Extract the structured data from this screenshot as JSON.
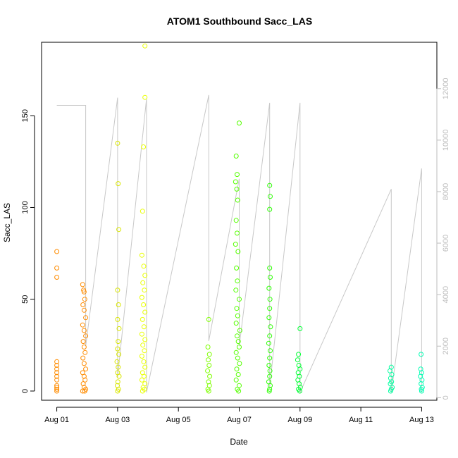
{
  "chart_data": {
    "type": "scatter",
    "title": "ATOM1 Southbound Sacc_LAS",
    "xlabel": "Date",
    "ylabel": "Sacc_LAS",
    "x_unit": "days since Aug 01 00:00",
    "xlim": [
      -0.5,
      12.5
    ],
    "ylim": [
      -5,
      190
    ],
    "y2lim": [
      -100,
      13800
    ],
    "x_ticks": [
      {
        "x": 0,
        "label": "Aug 01"
      },
      {
        "x": 2,
        "label": "Aug 03"
      },
      {
        "x": 4,
        "label": "Aug 05"
      },
      {
        "x": 6,
        "label": "Aug 07"
      },
      {
        "x": 8,
        "label": "Aug 09"
      },
      {
        "x": 10,
        "label": "Aug 11"
      },
      {
        "x": 12,
        "label": "Aug 13"
      }
    ],
    "y_ticks": [
      0,
      50,
      100,
      150
    ],
    "y2_ticks": [
      0,
      2000,
      4000,
      6000,
      8000,
      10000,
      12000
    ],
    "grid": false,
    "legend": "none",
    "series": [
      {
        "color": "#FF8C00",
        "points": [
          [
            0.0,
            76
          ],
          [
            0.0,
            67
          ],
          [
            0.0,
            62
          ],
          [
            0.0,
            16
          ],
          [
            0.0,
            14
          ],
          [
            0.0,
            12
          ],
          [
            0.0,
            10
          ],
          [
            0.0,
            8
          ],
          [
            0.0,
            6
          ],
          [
            0.0,
            3
          ],
          [
            0.0,
            2
          ],
          [
            0.0,
            1
          ],
          [
            0.0,
            0
          ],
          [
            0.85,
            58
          ],
          [
            0.88,
            55
          ],
          [
            0.9,
            54
          ],
          [
            0.92,
            50
          ],
          [
            0.86,
            47
          ],
          [
            0.9,
            44
          ],
          [
            0.95,
            40
          ],
          [
            0.85,
            36
          ],
          [
            0.9,
            33
          ],
          [
            0.95,
            30
          ],
          [
            0.87,
            27
          ],
          [
            0.9,
            24
          ],
          [
            0.93,
            21
          ],
          [
            0.86,
            18
          ],
          [
            0.9,
            15
          ],
          [
            0.95,
            12
          ],
          [
            0.85,
            10
          ],
          [
            0.9,
            8
          ],
          [
            0.93,
            6
          ],
          [
            0.87,
            4
          ],
          [
            0.9,
            2
          ],
          [
            0.95,
            1
          ],
          [
            0.85,
            0
          ],
          [
            0.92,
            0
          ]
        ]
      },
      {
        "color": "#D9E600",
        "points": [
          [
            2.0,
            135
          ],
          [
            2.02,
            113
          ],
          [
            2.04,
            88
          ],
          [
            2.0,
            55
          ],
          [
            2.03,
            47
          ],
          [
            2.0,
            39
          ],
          [
            2.05,
            34
          ],
          [
            2.02,
            27
          ],
          [
            2.0,
            23
          ],
          [
            2.04,
            20
          ],
          [
            1.98,
            16
          ],
          [
            2.02,
            13
          ],
          [
            2.0,
            10
          ],
          [
            2.05,
            8
          ],
          [
            2.01,
            5
          ],
          [
            1.99,
            3
          ],
          [
            2.03,
            1
          ],
          [
            2.0,
            0
          ]
        ]
      },
      {
        "color": "#E9FF00",
        "points": [
          [
            2.9,
            188
          ],
          [
            2.9,
            160
          ],
          [
            2.85,
            133
          ],
          [
            2.82,
            98
          ],
          [
            2.8,
            74
          ],
          [
            2.86,
            68
          ],
          [
            2.9,
            63
          ],
          [
            2.83,
            59
          ],
          [
            2.88,
            55
          ],
          [
            2.8,
            51
          ],
          [
            2.85,
            47
          ],
          [
            2.9,
            43
          ],
          [
            2.82,
            39
          ],
          [
            2.87,
            35
          ],
          [
            2.8,
            31
          ],
          [
            2.9,
            28
          ],
          [
            2.83,
            25
          ],
          [
            2.88,
            22
          ],
          [
            2.8,
            19
          ],
          [
            2.86,
            16
          ],
          [
            2.9,
            13
          ],
          [
            2.82,
            10
          ],
          [
            2.87,
            8
          ],
          [
            2.8,
            6
          ],
          [
            2.9,
            4
          ],
          [
            2.84,
            2
          ],
          [
            2.88,
            1
          ],
          [
            2.82,
            0
          ]
        ]
      },
      {
        "color": "#7FFF00",
        "points": [
          [
            5.0,
            39
          ],
          [
            4.97,
            24
          ],
          [
            5.02,
            20
          ],
          [
            4.98,
            17
          ],
          [
            5.01,
            14
          ],
          [
            4.96,
            11
          ],
          [
            5.03,
            8
          ],
          [
            4.99,
            5
          ],
          [
            5.02,
            3
          ],
          [
            4.97,
            1
          ],
          [
            5.0,
            0
          ]
        ]
      },
      {
        "color": "#55FF00",
        "points": [
          [
            6.0,
            146
          ],
          [
            5.9,
            128
          ],
          [
            5.93,
            118
          ],
          [
            5.88,
            114
          ],
          [
            5.92,
            110
          ],
          [
            5.95,
            104
          ],
          [
            5.9,
            93
          ],
          [
            5.93,
            86
          ],
          [
            5.88,
            80
          ],
          [
            5.96,
            76
          ],
          [
            5.91,
            67
          ],
          [
            5.94,
            60
          ],
          [
            5.89,
            55
          ],
          [
            6.0,
            50
          ],
          [
            5.92,
            45
          ],
          [
            5.95,
            41
          ],
          [
            5.9,
            37
          ],
          [
            6.02,
            33
          ],
          [
            5.93,
            30
          ],
          [
            5.97,
            27
          ],
          [
            6.0,
            24
          ],
          [
            5.9,
            21
          ],
          [
            5.95,
            18
          ],
          [
            6.01,
            15
          ],
          [
            5.92,
            12
          ],
          [
            5.97,
            9
          ],
          [
            5.9,
            6
          ],
          [
            6.0,
            3
          ],
          [
            5.94,
            1
          ],
          [
            5.98,
            0
          ]
        ]
      },
      {
        "color": "#2BFF00",
        "points": [
          [
            7.0,
            112
          ],
          [
            7.02,
            106
          ],
          [
            7.0,
            99
          ],
          [
            7.0,
            67
          ],
          [
            7.02,
            62
          ],
          [
            6.98,
            56
          ],
          [
            7.01,
            50
          ],
          [
            7.0,
            45
          ],
          [
            6.98,
            40
          ],
          [
            7.03,
            35
          ],
          [
            7.0,
            30
          ],
          [
            6.97,
            26
          ],
          [
            7.02,
            22
          ],
          [
            7.0,
            18
          ],
          [
            6.98,
            14
          ],
          [
            7.01,
            11
          ],
          [
            7.0,
            8
          ],
          [
            6.97,
            5
          ],
          [
            7.02,
            3
          ],
          [
            7.0,
            1
          ],
          [
            6.99,
            0
          ]
        ]
      },
      {
        "color": "#00FF33",
        "points": [
          [
            8.0,
            34
          ],
          [
            7.95,
            20
          ],
          [
            7.92,
            17
          ],
          [
            7.96,
            14
          ],
          [
            8.0,
            12
          ],
          [
            7.94,
            10
          ],
          [
            7.98,
            8
          ],
          [
            7.93,
            6
          ],
          [
            7.97,
            4
          ],
          [
            8.01,
            2
          ],
          [
            7.95,
            1
          ],
          [
            7.99,
            0
          ]
        ]
      },
      {
        "color": "#00FFA0",
        "points": [
          [
            11.0,
            13
          ],
          [
            10.96,
            11
          ],
          [
            11.02,
            9
          ],
          [
            10.98,
            7
          ],
          [
            11.01,
            5
          ],
          [
            10.97,
            4
          ],
          [
            11.03,
            2
          ],
          [
            11.0,
            1
          ],
          [
            10.98,
            0
          ]
        ]
      },
      {
        "color": "#00FFB4",
        "points": [
          [
            11.98,
            20
          ],
          [
            11.97,
            12
          ],
          [
            12.0,
            10
          ],
          [
            11.96,
            8
          ],
          [
            12.01,
            6
          ],
          [
            11.98,
            4
          ],
          [
            12.02,
            2
          ],
          [
            11.99,
            1
          ],
          [
            12.0,
            0
          ]
        ]
      }
    ],
    "secondary_series": {
      "color": "#c8c8c8",
      "points": [
        [
          0.0,
          11350
        ],
        [
          0.95,
          11350
        ],
        [
          0.95,
          2000
        ],
        [
          2.0,
          11650
        ],
        [
          2.0,
          800
        ],
        [
          2.95,
          11600
        ],
        [
          2.95,
          200
        ],
        [
          5.0,
          11750
        ],
        [
          5.0,
          2200
        ],
        [
          6.0,
          8500
        ],
        [
          6.0,
          2000
        ],
        [
          7.0,
          11450
        ],
        [
          7.0,
          400
        ],
        [
          8.0,
          11450
        ],
        [
          8.0,
          200
        ],
        [
          11.0,
          8100
        ],
        [
          11.0,
          200
        ],
        [
          12.0,
          8900
        ],
        [
          12.0,
          200
        ]
      ]
    }
  }
}
